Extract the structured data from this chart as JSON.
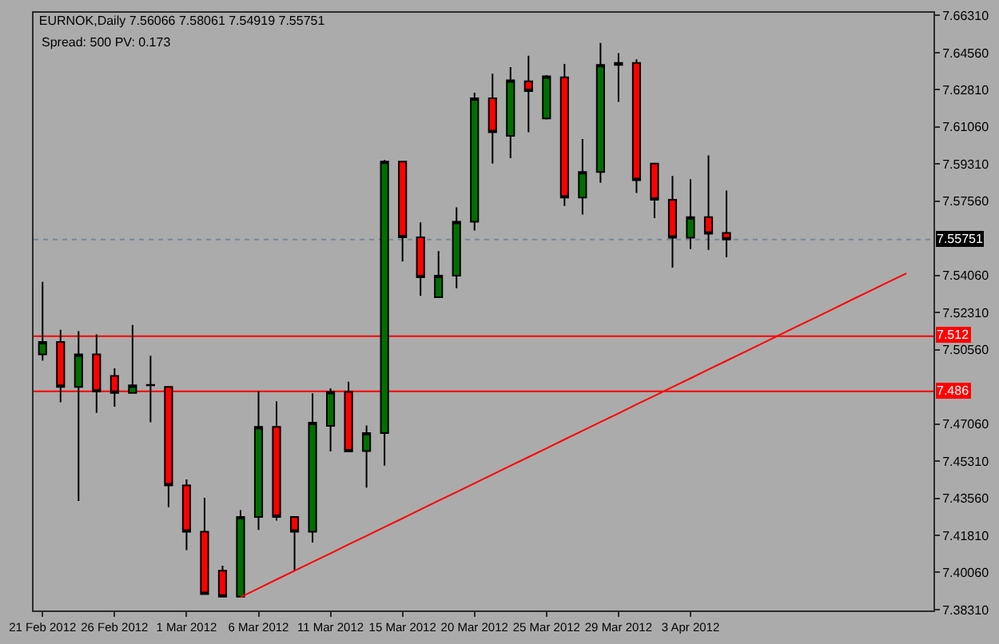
{
  "chart_data": {
    "type": "candlestick",
    "title": "EURNOK,Daily 7.56066 7.58061 7.54919 7.55751",
    "subtitle": "Spread: 500 PV: 0.173",
    "categories": [
      "21 Feb 2012",
      null,
      null,
      null,
      "26 Feb 2012",
      null,
      null,
      null,
      "1 Mar 2012",
      null,
      null,
      null,
      "6 Mar 2012",
      null,
      null,
      null,
      "11 Mar 2012",
      null,
      null,
      null,
      "15 Mar 2012",
      null,
      null,
      null,
      "20 Mar 2012",
      null,
      null,
      null,
      "25 Mar 2012",
      null,
      null,
      null,
      "29 Mar 2012",
      null,
      null,
      null,
      "3 Apr 2012",
      null,
      null,
      null,
      null,
      null,
      null,
      null,
      null,
      null,
      null,
      null,
      null,
      null
    ],
    "ohlc": [
      [
        7.5034,
        7.5376,
        7.5005,
        7.5092
      ],
      [
        7.5092,
        7.515,
        7.4808,
        7.4881
      ],
      [
        7.4881,
        7.5143,
        7.4343,
        7.5034
      ],
      [
        7.5034,
        7.5128,
        7.4758,
        7.4859
      ],
      [
        7.4932,
        7.4968,
        7.4787,
        7.4852
      ],
      [
        7.4852,
        7.5172,
        7.4852,
        7.4888
      ],
      [
        7.4888,
        7.5027,
        7.4714,
        7.489
      ],
      [
        7.4881,
        7.4881,
        7.4314,
        7.4416
      ],
      [
        7.4416,
        7.4445,
        7.4111,
        7.4198
      ],
      [
        7.4198,
        7.4358,
        7.3904,
        7.3904
      ],
      [
        7.4014,
        7.4038,
        7.3892,
        7.3892
      ],
      [
        7.3892,
        7.43,
        7.3892,
        7.4268
      ],
      [
        7.4268,
        7.486,
        7.4206,
        7.4692
      ],
      [
        7.4692,
        7.4813,
        7.4251,
        7.4268
      ],
      [
        7.4268,
        7.4268,
        7.4014,
        7.4198
      ],
      [
        7.4198,
        7.485,
        7.4147,
        7.4712
      ],
      [
        7.4697,
        7.4874,
        7.4576,
        7.4857
      ],
      [
        7.4857,
        7.4905,
        7.4576,
        7.4576
      ],
      [
        7.4578,
        7.4699,
        7.4406,
        7.4663
      ],
      [
        7.4663,
        7.595,
        7.451,
        7.5943
      ],
      [
        7.5943,
        7.5946,
        7.5472,
        7.5586
      ],
      [
        7.5586,
        7.5656,
        7.531,
        7.5397
      ],
      [
        7.5303,
        7.5521,
        7.5303,
        7.5405
      ],
      [
        7.5405,
        7.5727,
        7.5346,
        7.5659
      ],
      [
        7.5659,
        7.6267,
        7.5618,
        7.6241
      ],
      [
        7.6241,
        7.6357,
        7.5933,
        7.6081
      ],
      [
        7.6064,
        7.6388,
        7.5959,
        7.6326
      ],
      [
        7.6321,
        7.6442,
        7.6081,
        7.6275
      ],
      [
        7.6146,
        7.635,
        7.6141,
        7.6345
      ],
      [
        7.634,
        7.6403,
        7.5734,
        7.5773
      ],
      [
        7.5773,
        7.6049,
        7.5693,
        7.5894
      ],
      [
        7.5894,
        7.6502,
        7.5843,
        7.6398
      ],
      [
        7.6398,
        7.6454,
        7.6224,
        7.6408
      ],
      [
        7.6408,
        7.6425,
        7.5795,
        7.5855
      ],
      [
        7.5933,
        7.5935,
        7.5676,
        7.5763
      ],
      [
        7.5763,
        7.5875,
        7.5443,
        7.5584
      ],
      [
        7.5584,
        7.586,
        7.553,
        7.5681
      ],
      [
        7.5681,
        7.5972,
        7.5526,
        7.5603
      ],
      [
        7.56066,
        7.58061,
        7.54919,
        7.55751
      ],
      null,
      null,
      null,
      null,
      null,
      null,
      null,
      null,
      null,
      null,
      null
    ],
    "colors": [
      "#006f00",
      "#ff0000",
      "#006f00",
      "#ff0000",
      "#ff0000",
      "#006f00",
      "#000000",
      "#ff0000",
      "#ff0000",
      "#ff0000",
      "#ff0000",
      "#006f00",
      "#006f00",
      "#ff0000",
      "#ff0000",
      "#006f00",
      "#006f00",
      "#ff0000",
      "#006f00",
      "#006f00",
      "#ff0000",
      "#ff0000",
      "#006f00",
      "#006f00",
      "#006f00",
      "#ff0000",
      "#006f00",
      "#ff0000",
      "#006f00",
      "#ff0000",
      "#006f00",
      "#006f00",
      "#000000",
      "#ff0000",
      "#ff0000",
      "#ff0000",
      "#006f00",
      "#ff0000",
      "#ff0000",
      null,
      null,
      null,
      null,
      null,
      null,
      null,
      null,
      null,
      null,
      null
    ],
    "series": [
      {
        "type": "line",
        "color": "#ff0000",
        "values": [
          null,
          null,
          null,
          null,
          null,
          null,
          null,
          null,
          null,
          null,
          null,
          7.389,
          7.3931,
          7.3973,
          7.4014,
          7.4055,
          7.4096,
          7.4138,
          7.4179,
          7.422,
          7.4261,
          7.4303,
          7.4344,
          7.4385,
          7.4426,
          7.4468,
          7.4509,
          7.455,
          7.4591,
          7.4633,
          7.4674,
          7.4715,
          7.4756,
          7.4798,
          7.4839,
          7.488,
          7.4921,
          7.4963,
          7.5004,
          7.5045,
          7.5086,
          7.5128,
          7.5169,
          7.521,
          7.5251,
          7.5293,
          7.5334,
          7.5375,
          7.5416,
          null
        ]
      }
    ],
    "ylim": [
      7.3827,
      7.6644
    ],
    "yticks": [
      {
        "value": 7.3831,
        "label": "7.38310"
      },
      {
        "value": 7.4006,
        "label": "7.40060"
      },
      {
        "value": 7.4181,
        "label": "7.41810"
      },
      {
        "value": 7.4356,
        "label": "7.43560"
      },
      {
        "value": 7.4531,
        "label": "7.45310"
      },
      {
        "value": 7.4706,
        "label": "7.47060"
      },
      {
        "value": 7.5056,
        "label": "7.50560"
      },
      {
        "value": 7.5231,
        "label": "7.52310"
      },
      {
        "value": 7.5406,
        "label": "7.54060"
      },
      {
        "value": 7.5756,
        "label": "7.57560"
      },
      {
        "value": 7.5931,
        "label": "7.59310"
      },
      {
        "value": 7.6106,
        "label": "7.61060"
      },
      {
        "value": 7.6281,
        "label": "7.62810"
      },
      {
        "value": 7.6456,
        "label": "7.64560"
      },
      {
        "value": 7.6631,
        "label": "7.66310"
      }
    ],
    "ref_lines": [
      {
        "axis": "y",
        "value": 7.512,
        "label": "7.512",
        "color": "#ff0000"
      },
      {
        "axis": "y",
        "value": 7.486,
        "label": "7.486",
        "color": "#ff0000"
      },
      {
        "axis": "y",
        "value": 7.55751,
        "label": "7.55751",
        "color": "#75889c",
        "line_style": "dotted"
      }
    ],
    "grid": false
  }
}
